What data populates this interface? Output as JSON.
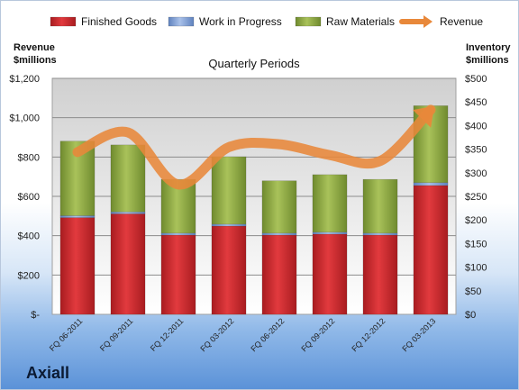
{
  "brand": "Axiall",
  "chart_data": {
    "type": "bar",
    "stacked": true,
    "title": "Quarterly Periods",
    "left_axis_title": [
      "Revenue",
      "$millions"
    ],
    "right_axis_title": [
      "Inventory",
      "$millions"
    ],
    "categories": [
      "FQ 06-2011",
      "FQ 09-2011",
      "FQ 12-2011",
      "FQ 03-2012",
      "FQ 06-2012",
      "FQ 09-2012",
      "FQ 12-2012",
      "FQ 03-2013"
    ],
    "left_ticks": [
      "$-",
      "$200",
      "$400",
      "$600",
      "$800",
      "$1,000",
      "$1,200"
    ],
    "right_ticks": [
      "$0",
      "$50",
      "$100",
      "$150",
      "$200",
      "$250",
      "$300",
      "$350",
      "$400",
      "$450",
      "$500"
    ],
    "left_ylim": [
      0,
      1200
    ],
    "right_ylim": [
      0,
      500
    ],
    "legend_position": "top",
    "grid": true,
    "series": [
      {
        "name": "Finished Goods",
        "axis": "right",
        "color": "#d0262b",
        "values": [
          205,
          213,
          168,
          187,
          168,
          170,
          168,
          273
        ]
      },
      {
        "name": "Work in Progress",
        "axis": "right",
        "color": "#7f9fd4",
        "values": [
          4,
          4,
          4,
          4,
          4,
          4,
          4,
          6
        ]
      },
      {
        "name": "Raw Materials",
        "axis": "right",
        "color": "#9ab54b",
        "values": [
          158,
          142,
          114,
          143,
          111,
          122,
          114,
          163
        ]
      },
      {
        "name": "Revenue",
        "axis": "left",
        "type": "line",
        "color": "#e8883a",
        "values": [
          825,
          925,
          660,
          850,
          865,
          810,
          780,
          1040
        ]
      }
    ]
  }
}
